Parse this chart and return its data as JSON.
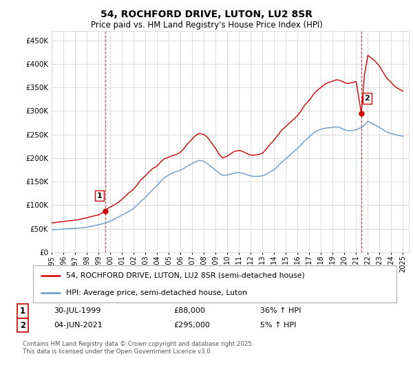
{
  "title": "54, ROCHFORD DRIVE, LUTON, LU2 8SR",
  "subtitle": "Price paid vs. HM Land Registry's House Price Index (HPI)",
  "legend_label_red": "54, ROCHFORD DRIVE, LUTON, LU2 8SR (semi-detached house)",
  "legend_label_blue": "HPI: Average price, semi-detached house, Luton",
  "annotation1_date": "30-JUL-1999",
  "annotation1_price": "£88,000",
  "annotation1_hpi": "36% ↑ HPI",
  "annotation2_date": "04-JUN-2021",
  "annotation2_price": "£295,000",
  "annotation2_hpi": "5% ↑ HPI",
  "footer": "Contains HM Land Registry data © Crown copyright and database right 2025.\nThis data is licensed under the Open Government Licence v3.0.",
  "red_color": "#cc0000",
  "blue_color": "#6699cc",
  "vline_color": "#cc0000",
  "background_color": "#ffffff",
  "grid_color": "#cccccc",
  "ylim": [
    0,
    470000
  ],
  "yticks": [
    0,
    50000,
    100000,
    150000,
    200000,
    250000,
    300000,
    350000,
    400000,
    450000
  ],
  "red_x": [
    1995.0,
    1995.3,
    1995.6,
    1996.0,
    1996.3,
    1996.6,
    1997.0,
    1997.3,
    1997.6,
    1998.0,
    1998.3,
    1998.6,
    1999.0,
    1999.3,
    1999.58,
    1999.8,
    2000.1,
    2000.4,
    2000.7,
    2001.0,
    2001.3,
    2001.6,
    2002.0,
    2002.3,
    2002.6,
    2003.0,
    2003.3,
    2003.6,
    2004.0,
    2004.3,
    2004.6,
    2005.0,
    2005.3,
    2005.6,
    2006.0,
    2006.3,
    2006.6,
    2007.0,
    2007.3,
    2007.6,
    2008.0,
    2008.3,
    2008.6,
    2009.0,
    2009.3,
    2009.6,
    2010.0,
    2010.3,
    2010.6,
    2011.0,
    2011.3,
    2011.6,
    2012.0,
    2012.3,
    2012.6,
    2013.0,
    2013.3,
    2013.6,
    2014.0,
    2014.3,
    2014.6,
    2015.0,
    2015.3,
    2015.6,
    2016.0,
    2016.3,
    2016.6,
    2017.0,
    2017.3,
    2017.6,
    2018.0,
    2018.3,
    2018.6,
    2019.0,
    2019.3,
    2019.6,
    2020.0,
    2020.3,
    2020.6,
    2021.0,
    2021.44,
    2021.7,
    2022.0,
    2022.3,
    2022.6,
    2023.0,
    2023.3,
    2023.6,
    2024.0,
    2024.3,
    2024.6,
    2025.0
  ],
  "red_y": [
    62000,
    63000,
    64000,
    65000,
    66000,
    67000,
    68000,
    69000,
    71000,
    73000,
    75000,
    77000,
    79000,
    83000,
    88000,
    93000,
    97000,
    101000,
    106000,
    112000,
    119000,
    126000,
    134000,
    143000,
    153000,
    162000,
    170000,
    177000,
    183000,
    191000,
    198000,
    202000,
    205000,
    207000,
    212000,
    220000,
    230000,
    240000,
    248000,
    252000,
    250000,
    244000,
    234000,
    220000,
    208000,
    200000,
    204000,
    209000,
    214000,
    216000,
    214000,
    210000,
    206000,
    206000,
    207000,
    210000,
    218000,
    228000,
    238000,
    248000,
    258000,
    267000,
    274000,
    281000,
    290000,
    300000,
    312000,
    323000,
    333000,
    342000,
    350000,
    356000,
    360000,
    363000,
    366000,
    365000,
    360000,
    358000,
    360000,
    362000,
    295000,
    375000,
    418000,
    412000,
    406000,
    395000,
    382000,
    370000,
    360000,
    352000,
    347000,
    342000
  ],
  "blue_x": [
    1995.0,
    1995.3,
    1995.6,
    1996.0,
    1996.3,
    1996.6,
    1997.0,
    1997.3,
    1997.6,
    1998.0,
    1998.3,
    1998.6,
    1999.0,
    1999.3,
    1999.6,
    1999.9,
    2000.2,
    2000.5,
    2000.8,
    2001.1,
    2001.4,
    2001.7,
    2002.0,
    2002.3,
    2002.6,
    2003.0,
    2003.3,
    2003.6,
    2004.0,
    2004.3,
    2004.6,
    2005.0,
    2005.3,
    2005.6,
    2006.0,
    2006.3,
    2006.6,
    2007.0,
    2007.3,
    2007.6,
    2008.0,
    2008.3,
    2008.6,
    2009.0,
    2009.3,
    2009.6,
    2010.0,
    2010.3,
    2010.6,
    2011.0,
    2011.3,
    2011.6,
    2012.0,
    2012.3,
    2012.6,
    2013.0,
    2013.3,
    2013.6,
    2014.0,
    2014.3,
    2014.6,
    2015.0,
    2015.3,
    2015.6,
    2016.0,
    2016.3,
    2016.6,
    2017.0,
    2017.3,
    2017.6,
    2018.0,
    2018.3,
    2018.6,
    2019.0,
    2019.3,
    2019.6,
    2020.0,
    2020.3,
    2020.6,
    2021.0,
    2021.3,
    2021.6,
    2022.0,
    2022.3,
    2022.6,
    2023.0,
    2023.3,
    2023.6,
    2024.0,
    2024.3,
    2024.6,
    2025.0
  ],
  "blue_y": [
    47000,
    48000,
    48500,
    49000,
    49500,
    50000,
    50500,
    51000,
    52000,
    53000,
    54500,
    56000,
    58000,
    60000,
    62500,
    65000,
    68000,
    72000,
    76000,
    80000,
    84000,
    88000,
    93000,
    100000,
    108000,
    116000,
    124000,
    132000,
    141000,
    150000,
    158000,
    164000,
    168000,
    171000,
    174000,
    178000,
    183000,
    188000,
    192000,
    195000,
    193000,
    188000,
    182000,
    174000,
    168000,
    163000,
    164000,
    166000,
    168000,
    169000,
    168000,
    165000,
    162000,
    161000,
    161000,
    162000,
    165000,
    170000,
    175000,
    182000,
    190000,
    198000,
    205000,
    212000,
    220000,
    228000,
    236000,
    245000,
    252000,
    257000,
    261000,
    263000,
    264000,
    265000,
    266000,
    265000,
    260000,
    258000,
    258000,
    260000,
    263000,
    267000,
    278000,
    274000,
    270000,
    265000,
    260000,
    255000,
    252000,
    250000,
    248000,
    246000
  ],
  "vline1_x": 1999.58,
  "vline2_x": 2021.44,
  "marker1_x": 1999.58,
  "marker1_y": 88000,
  "marker2_x": 2021.44,
  "marker2_y": 295000,
  "xmin": 1995.0,
  "xmax": 2025.5
}
